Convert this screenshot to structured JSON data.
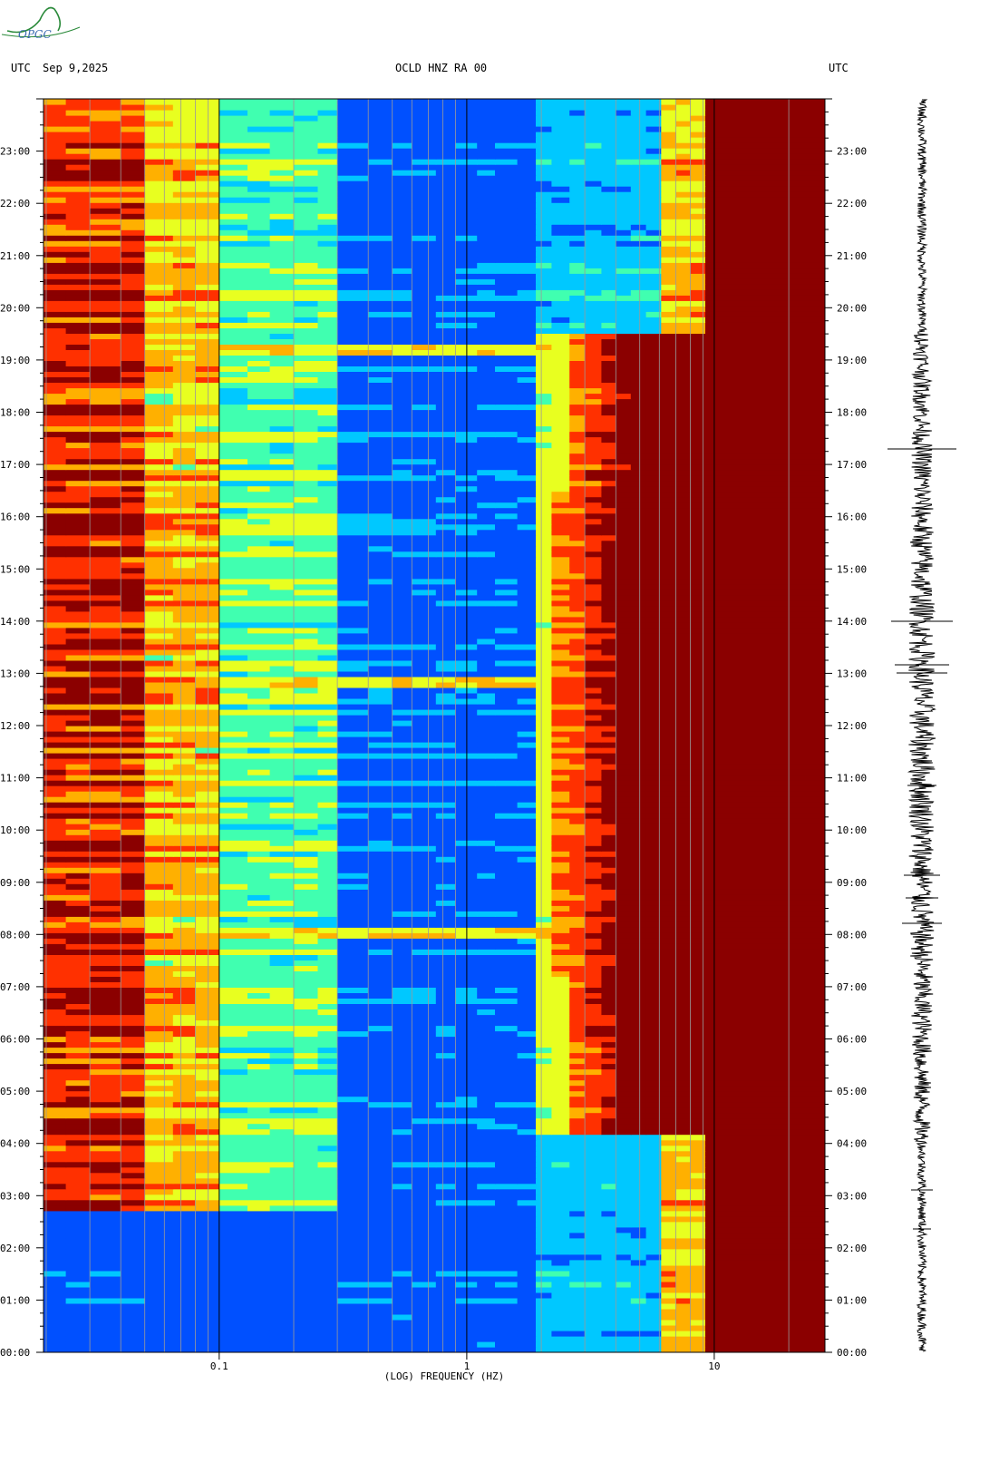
{
  "header": {
    "left_utc": "UTC",
    "date": "Sep 9,2025",
    "station": "OCLD HNZ RA 00",
    "right_utc": "UTC"
  },
  "logo_text": "OPGC",
  "colors": {
    "c0": "#0000c8",
    "c1": "#0050ff",
    "c2": "#00c8ff",
    "c3": "#40ffb0",
    "c4": "#e8ff20",
    "c5": "#ffb000",
    "c6": "#ff3000",
    "c7": "#8b0000"
  },
  "chart_data": {
    "type": "heatmap",
    "title": "OCLD HNZ RA 00",
    "xlabel": "(LOG) FREQUENCY (HZ)",
    "ylabel": "UTC",
    "x_scale": "log",
    "x_ticks": [
      {
        "value": 0.1,
        "label": "0.1"
      },
      {
        "value": 1,
        "label": "1"
      },
      {
        "value": 10,
        "label": "10"
      }
    ],
    "y_ticks": [
      "23:00",
      "22:00",
      "21:00",
      "20:00",
      "19:00",
      "18:00",
      "17:00",
      "16:00",
      "15:00",
      "14:00",
      "13:00",
      "12:00",
      "11:00",
      "10:00",
      "09:00",
      "08:00",
      "07:00",
      "06:00",
      "05:00",
      "04:00",
      "03:00",
      "02:00",
      "01:00",
      "00:00"
    ],
    "y_range": [
      "00:00",
      "24:00"
    ],
    "grid": true
  }
}
